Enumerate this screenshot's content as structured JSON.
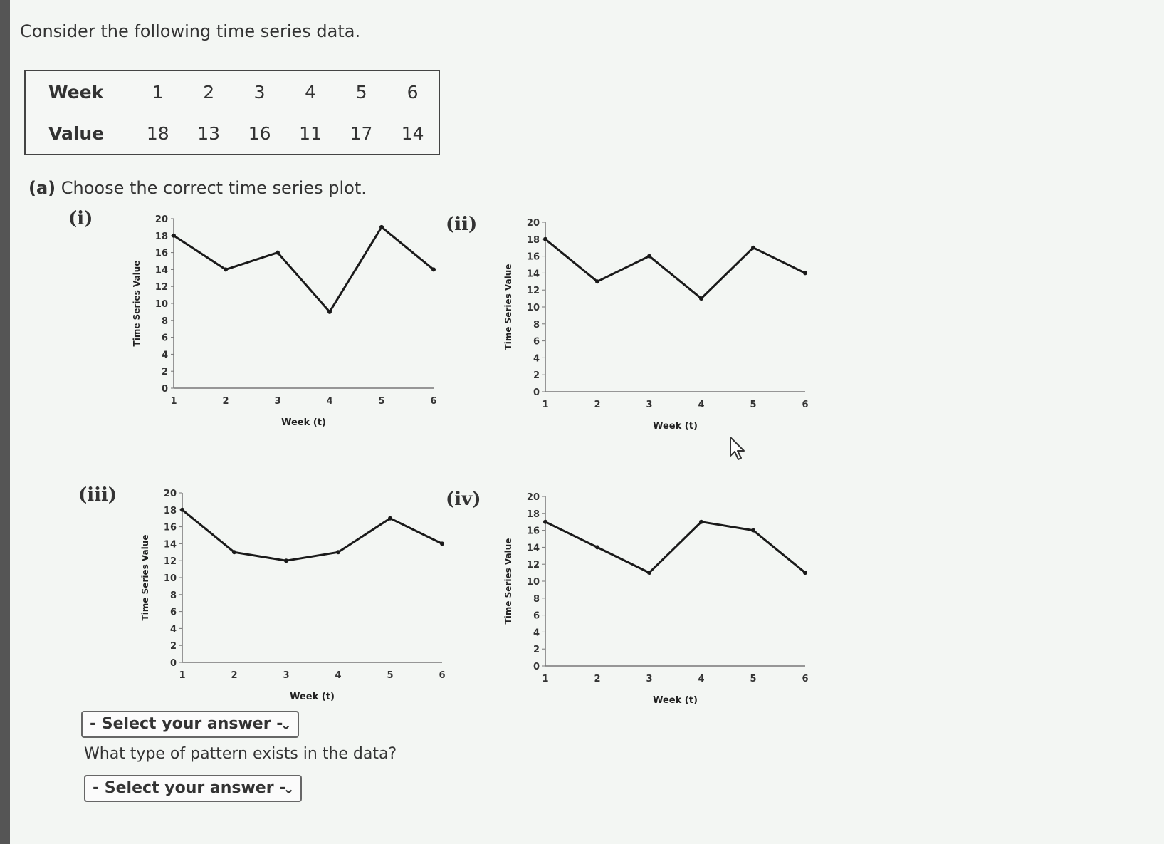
{
  "intro_text": "Consider the following time series data.",
  "table": {
    "row_labels": [
      "Week",
      "Value"
    ],
    "weeks": [
      "1",
      "2",
      "3",
      "4",
      "5",
      "6"
    ],
    "values": [
      "18",
      "13",
      "16",
      "11",
      "17",
      "14"
    ]
  },
  "part_a": {
    "label": "(a)",
    "text": "Choose the correct time series plot."
  },
  "chart_data": [
    {
      "id": "i",
      "label": "(i)",
      "type": "line",
      "x": [
        1,
        2,
        3,
        4,
        5,
        6
      ],
      "y": [
        18,
        14,
        16,
        9,
        19,
        14
      ],
      "xlabel": "Week (t)",
      "ylabel": "Time Series Value",
      "xticks": [
        "1",
        "2",
        "3",
        "4",
        "5",
        "6"
      ],
      "yticks": [
        "0",
        "2",
        "4",
        "6",
        "8",
        "10",
        "12",
        "14",
        "16",
        "18",
        "20"
      ],
      "xlim": [
        1,
        6
      ],
      "ylim": [
        0,
        20
      ]
    },
    {
      "id": "ii",
      "label": "(ii)",
      "type": "line",
      "x": [
        1,
        2,
        3,
        4,
        5,
        6
      ],
      "y": [
        18,
        13,
        16,
        11,
        17,
        14
      ],
      "xlabel": "Week (t)",
      "ylabel": "Time Series Value",
      "xticks": [
        "1",
        "2",
        "3",
        "4",
        "5",
        "6"
      ],
      "yticks": [
        "0",
        "2",
        "4",
        "6",
        "8",
        "10",
        "12",
        "14",
        "16",
        "18",
        "20"
      ],
      "xlim": [
        1,
        6
      ],
      "ylim": [
        0,
        20
      ]
    },
    {
      "id": "iii",
      "label": "(iii)",
      "type": "line",
      "x": [
        1,
        2,
        3,
        4,
        5,
        6
      ],
      "y": [
        18,
        13,
        12,
        13,
        17,
        14
      ],
      "xlabel": "Week (t)",
      "ylabel": "Time Series Value",
      "xticks": [
        "1",
        "2",
        "3",
        "4",
        "5",
        "6"
      ],
      "yticks": [
        "0",
        "2",
        "4",
        "6",
        "8",
        "10",
        "12",
        "14",
        "16",
        "18",
        "20"
      ],
      "xlim": [
        1,
        6
      ],
      "ylim": [
        0,
        20
      ]
    },
    {
      "id": "iv",
      "label": "(iv)",
      "type": "line",
      "x": [
        1,
        2,
        3,
        4,
        5,
        6
      ],
      "y": [
        17,
        14,
        11,
        17,
        16,
        11
      ],
      "xlabel": "Week (t)",
      "ylabel": "Time Series Value",
      "xticks": [
        "1",
        "2",
        "3",
        "4",
        "5",
        "6"
      ],
      "yticks": [
        "0",
        "2",
        "4",
        "6",
        "8",
        "10",
        "12",
        "14",
        "16",
        "18",
        "20"
      ],
      "xlim": [
        1,
        6
      ],
      "ylim": [
        0,
        20
      ]
    }
  ],
  "select_1": {
    "value": "- Select your answer -"
  },
  "question_2": "What type of pattern exists in the data?",
  "select_2": {
    "value": "- Select your answer -"
  }
}
